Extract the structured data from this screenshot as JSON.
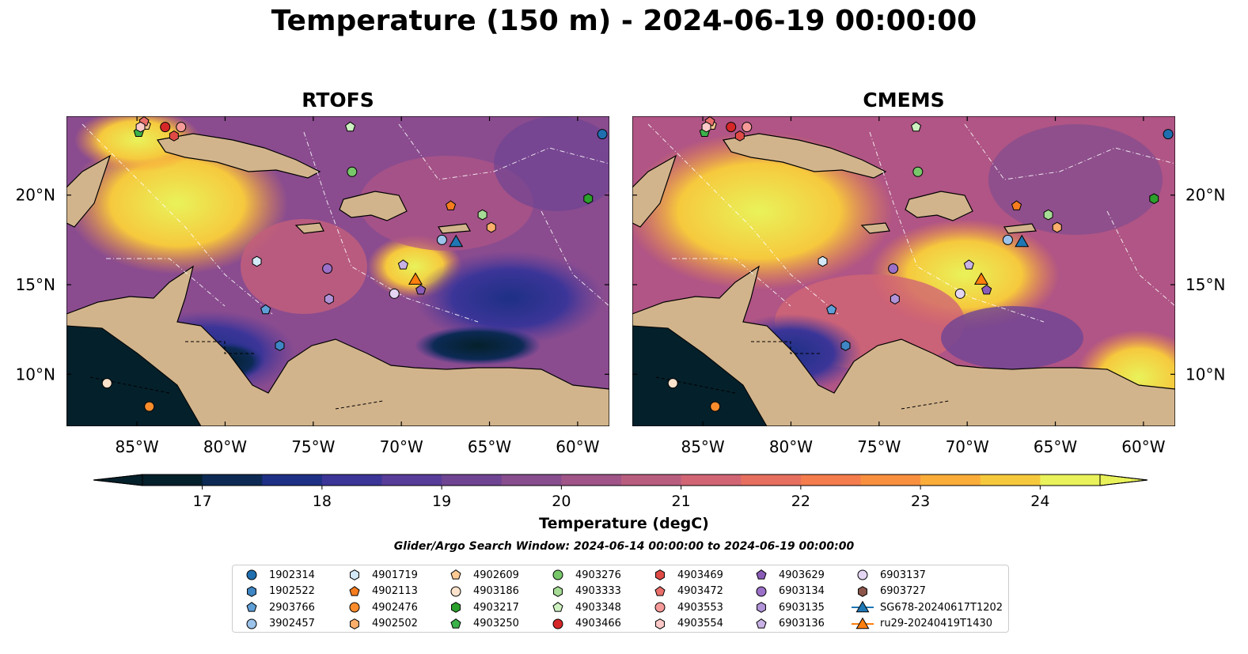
{
  "title": "Temperature (150 m) - 2024-06-19 00:00:00",
  "panels": [
    {
      "title": "RTOFS"
    },
    {
      "title": "CMEMS"
    }
  ],
  "axes": {
    "lon_labels": [
      "85°W",
      "80°W",
      "75°W",
      "70°W",
      "65°W",
      "60°W"
    ],
    "lon_values": [
      -85,
      -80,
      -75,
      -70,
      -65,
      -60
    ],
    "lat_labels": [
      "10°N",
      "15°N",
      "20°N"
    ],
    "lat_values": [
      10,
      15,
      20
    ],
    "lon_range": [
      -89,
      -58.2
    ],
    "lat_range": [
      7.1,
      24.4
    ]
  },
  "colorbar": {
    "label": "Temperature (degC)",
    "ticks": [
      "17",
      "18",
      "19",
      "20",
      "21",
      "22",
      "23",
      "24"
    ],
    "range": [
      16.5,
      24.5
    ],
    "extend": "both",
    "colors": [
      "#04202b",
      "#0c2a54",
      "#1e3085",
      "#3b3598",
      "#583c99",
      "#6f4593",
      "#874d8d",
      "#a05487",
      "#b95d7f",
      "#d16574",
      "#e76f5f",
      "#f47c4d",
      "#f99040",
      "#fbad3a",
      "#f6c93d",
      "#e9f25a"
    ]
  },
  "search_window": "Glider/Argo Search Window: 2024-06-14 00:00:00 to 2024-06-19 00:00:00",
  "legend_items": [
    {
      "label": "1902314",
      "marker": "circle",
      "color": "#1f6fb0"
    },
    {
      "label": "1902522",
      "marker": "hexagon",
      "color": "#3f86c4"
    },
    {
      "label": "2903766",
      "marker": "pentagon",
      "color": "#5f9fd8"
    },
    {
      "label": "3902457",
      "marker": "circle",
      "color": "#9cc3ea"
    },
    {
      "label": "4901719",
      "marker": "hexagon",
      "color": "#d4e9f8"
    },
    {
      "label": "4902113",
      "marker": "pentagon",
      "color": "#f57d1f"
    },
    {
      "label": "4902476",
      "marker": "circle",
      "color": "#fb8c2c"
    },
    {
      "label": "4902502",
      "marker": "hexagon",
      "color": "#fcae6b"
    },
    {
      "label": "4902609",
      "marker": "pentagon",
      "color": "#fdca94"
    },
    {
      "label": "4903186",
      "marker": "circle",
      "color": "#fde3cc"
    },
    {
      "label": "4903217",
      "marker": "hexagon",
      "color": "#2ca02c"
    },
    {
      "label": "4903250",
      "marker": "pentagon",
      "color": "#3cb24a"
    },
    {
      "label": "4903276",
      "marker": "circle",
      "color": "#78c86a"
    },
    {
      "label": "4903333",
      "marker": "hexagon",
      "color": "#a6dc95"
    },
    {
      "label": "4903348",
      "marker": "pentagon",
      "color": "#cdf1c0"
    },
    {
      "label": "4903466",
      "marker": "circle",
      "color": "#d62728"
    },
    {
      "label": "4903469",
      "marker": "hexagon",
      "color": "#e04a45"
    },
    {
      "label": "4903472",
      "marker": "pentagon",
      "color": "#ea6f6a"
    },
    {
      "label": "4903553",
      "marker": "circle",
      "color": "#f59a98"
    },
    {
      "label": "4903554",
      "marker": "hexagon",
      "color": "#fbc9c8"
    },
    {
      "label": "4903629",
      "marker": "pentagon",
      "color": "#8a5cb8"
    },
    {
      "label": "6903134",
      "marker": "circle",
      "color": "#9b70c8"
    },
    {
      "label": "6903135",
      "marker": "hexagon",
      "color": "#b193d8"
    },
    {
      "label": "6903136",
      "marker": "pentagon",
      "color": "#c9b3e6"
    },
    {
      "label": "6903137",
      "marker": "circle",
      "color": "#e4d6f3"
    },
    {
      "label": "6903727",
      "marker": "hexagon",
      "color": "#8c564b"
    },
    {
      "label": "SG678-20240617T1202",
      "marker": "triangle",
      "color": "#1f77b4"
    },
    {
      "label": "ru29-20240419T1430",
      "marker": "triangle",
      "color": "#ff7f0e"
    }
  ],
  "markers": [
    {
      "ref": "1902314",
      "lon": -58.6,
      "lat": 23.4
    },
    {
      "ref": "1902522",
      "lon": -76.9,
      "lat": 11.6
    },
    {
      "ref": "2903766",
      "lon": -77.7,
      "lat": 13.6
    },
    {
      "ref": "3902457",
      "lon": -67.7,
      "lat": 17.5
    },
    {
      "ref": "4901719",
      "lon": -78.2,
      "lat": 16.3
    },
    {
      "ref": "4902113",
      "lon": -67.2,
      "lat": 19.4
    },
    {
      "ref": "4902476",
      "lon": -84.3,
      "lat": 8.2
    },
    {
      "ref": "4902502",
      "lon": -64.9,
      "lat": 18.2
    },
    {
      "ref": "4902609",
      "lon": -84.5,
      "lat": 23.9
    },
    {
      "ref": "4903186",
      "lon": -86.7,
      "lat": 9.5
    },
    {
      "ref": "4903217",
      "lon": -59.4,
      "lat": 19.8
    },
    {
      "ref": "4903250",
      "lon": -84.9,
      "lat": 23.5
    },
    {
      "ref": "4903276",
      "lon": -72.8,
      "lat": 21.3
    },
    {
      "ref": "4903333",
      "lon": -65.4,
      "lat": 18.9
    },
    {
      "ref": "4903348",
      "lon": -72.9,
      "lat": 23.8
    },
    {
      "ref": "4903466",
      "lon": -83.4,
      "lat": 23.8
    },
    {
      "ref": "4903469",
      "lon": -82.9,
      "lat": 23.3
    },
    {
      "ref": "4903472",
      "lon": -84.6,
      "lat": 24.1
    },
    {
      "ref": "4903553",
      "lon": -82.5,
      "lat": 23.8
    },
    {
      "ref": "4903554",
      "lon": -84.8,
      "lat": 23.8
    },
    {
      "ref": "4903629",
      "lon": -68.9,
      "lat": 14.7
    },
    {
      "ref": "6903134",
      "lon": -74.2,
      "lat": 15.9
    },
    {
      "ref": "6903135",
      "lon": -74.1,
      "lat": 14.2
    },
    {
      "ref": "6903136",
      "lon": -69.9,
      "lat": 16.1
    },
    {
      "ref": "6903137",
      "lon": -70.4,
      "lat": 14.5
    },
    {
      "ref": "SG678-20240617T1202",
      "lon": -66.9,
      "lat": 17.4
    },
    {
      "ref": "ru29-20240419T1430",
      "lon": -69.2,
      "lat": 15.3
    }
  ]
}
